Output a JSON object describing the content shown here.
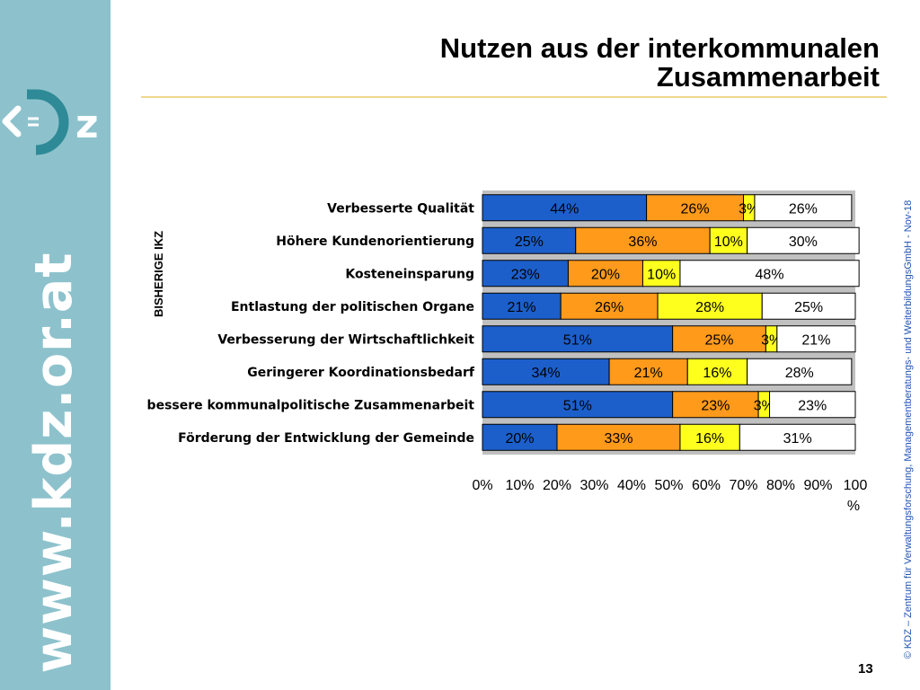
{
  "title_line1": "Nutzen aus der interkommunalen",
  "title_line2": "Zusammenarbeit",
  "logo_text": "KDZ",
  "url": "www.kdz.or.at",
  "copyright": "© KDZ – Zentrum für Verwaltungsforschung, Managementberatungs- und WeiterbildungsGmbH - Nov-18",
  "page_number": "13",
  "chart_data": {
    "type": "bar",
    "orientation": "horizontal",
    "stacked": true,
    "group_label": "BISHERIGE IKZ",
    "categories": [
      "Verbesserte Qualität",
      "Höhere Kundenorientierung",
      "Kosteneinsparung",
      "Entlastung der politischen Organe",
      "Verbesserung der Wirtschaftlichkeit",
      "Geringerer Koordinationsbedarf",
      "bessere kommunalpolitische Zusammenarbeit",
      "Förderung der Entwicklung der Gemeinde"
    ],
    "series": [
      {
        "color": "#1c5fcb",
        "values": [
          44,
          25,
          23,
          21,
          51,
          34,
          51,
          20
        ]
      },
      {
        "color": "#ff9a1a",
        "values": [
          26,
          36,
          20,
          26,
          25,
          21,
          23,
          33
        ]
      },
      {
        "color": "#ffff1e",
        "values": [
          3,
          10,
          10,
          28,
          3,
          16,
          3,
          16
        ]
      },
      {
        "color": "#ffffff",
        "values": [
          26,
          30,
          48,
          25,
          21,
          28,
          23,
          31
        ]
      }
    ],
    "x_ticks": [
      "0%",
      "10%",
      "20%",
      "30%",
      "40%",
      "50%",
      "60%",
      "70%",
      "80%",
      "90%",
      "100"
    ],
    "x_tick_overflow": "%",
    "xlim": [
      0,
      100
    ],
    "grid": false,
    "legend": "none"
  }
}
